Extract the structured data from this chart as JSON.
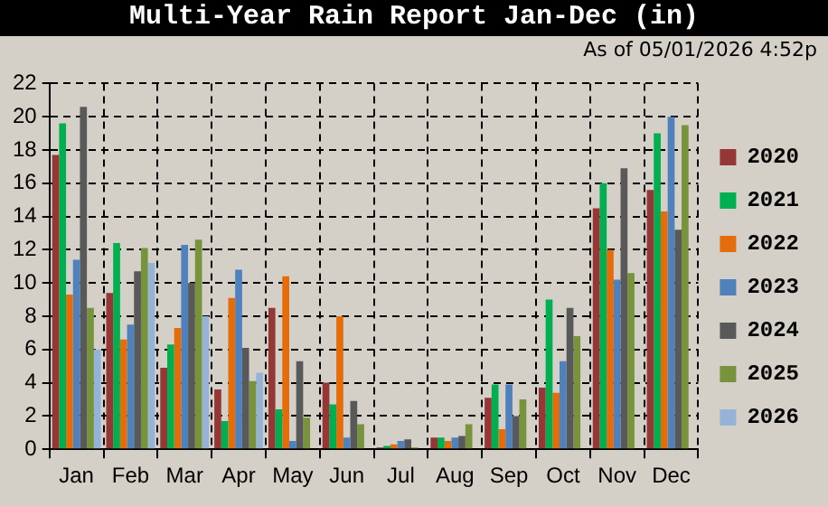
{
  "chart_data": {
    "type": "bar",
    "title": "Multi-Year Rain Report Jan-Dec (in)",
    "subtitle": "As of 05/01/2026 4:52p",
    "categories": [
      "Jan",
      "Feb",
      "Mar",
      "Apr",
      "May",
      "Jun",
      "Jul",
      "Aug",
      "Sep",
      "Oct",
      "Nov",
      "Dec"
    ],
    "series": [
      {
        "name": "2020",
        "color": "#953735",
        "values": [
          17.7,
          9.4,
          4.9,
          3.6,
          8.5,
          4.0,
          0.1,
          0.7,
          3.1,
          3.7,
          14.5,
          15.6
        ]
      },
      {
        "name": "2021",
        "color": "#00b050",
        "values": [
          19.6,
          12.4,
          6.3,
          1.7,
          2.4,
          2.7,
          0.2,
          0.7,
          3.9,
          9.0,
          16.0,
          19.0
        ]
      },
      {
        "name": "2022",
        "color": "#e46c0a",
        "values": [
          9.3,
          6.6,
          7.3,
          9.1,
          10.4,
          8.0,
          0.3,
          0.5,
          1.2,
          3.4,
          12.0,
          14.3
        ]
      },
      {
        "name": "2023",
        "color": "#4f81bd",
        "values": [
          11.4,
          7.5,
          12.3,
          10.8,
          0.5,
          0.7,
          0.5,
          0.7,
          3.9,
          5.3,
          10.2,
          20.0
        ]
      },
      {
        "name": "2024",
        "color": "#595959",
        "values": [
          20.6,
          10.7,
          10.0,
          6.1,
          5.3,
          2.9,
          0.6,
          0.8,
          2.0,
          8.5,
          16.9,
          13.2
        ]
      },
      {
        "name": "2025",
        "color": "#77933c",
        "values": [
          8.5,
          12.1,
          12.6,
          4.1,
          1.9,
          1.5,
          0.1,
          1.5,
          3.0,
          6.8,
          10.6,
          19.5
        ]
      },
      {
        "name": "2026",
        "color": "#95b3d7",
        "values": [
          6.0,
          11.2,
          8.0,
          4.6,
          null,
          null,
          null,
          null,
          null,
          null,
          null,
          null
        ]
      }
    ],
    "ylim": [
      0,
      22
    ],
    "yticks": [
      0,
      2,
      4,
      6,
      8,
      10,
      12,
      14,
      16,
      18,
      20,
      22
    ],
    "grid": true,
    "legend": "right"
  }
}
